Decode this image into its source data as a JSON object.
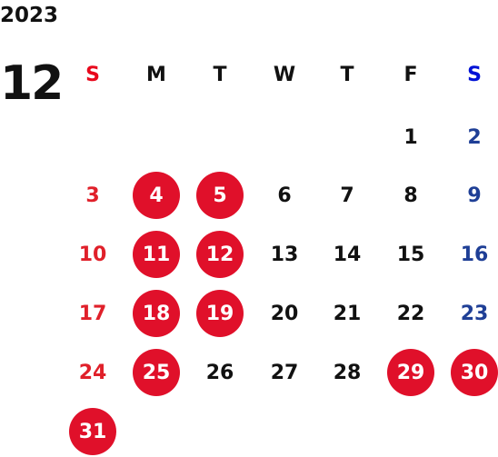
{
  "calendar": {
    "year": "2023",
    "month": "12",
    "weekdays": [
      "S",
      "M",
      "T",
      "W",
      "T",
      "F",
      "S"
    ],
    "first_weekday_index": 5,
    "days": [
      {
        "label": "1",
        "holiday": false
      },
      {
        "label": "2",
        "holiday": false
      },
      {
        "label": "3",
        "holiday": false
      },
      {
        "label": "4",
        "holiday": true
      },
      {
        "label": "5",
        "holiday": true
      },
      {
        "label": "6",
        "holiday": false
      },
      {
        "label": "7",
        "holiday": false
      },
      {
        "label": "8",
        "holiday": false
      },
      {
        "label": "9",
        "holiday": false
      },
      {
        "label": "10",
        "holiday": false
      },
      {
        "label": "11",
        "holiday": true
      },
      {
        "label": "12",
        "holiday": true
      },
      {
        "label": "13",
        "holiday": false
      },
      {
        "label": "14",
        "holiday": false
      },
      {
        "label": "15",
        "holiday": false
      },
      {
        "label": "16",
        "holiday": false
      },
      {
        "label": "17",
        "holiday": false
      },
      {
        "label": "18",
        "holiday": true
      },
      {
        "label": "19",
        "holiday": true
      },
      {
        "label": "20",
        "holiday": false
      },
      {
        "label": "21",
        "holiday": false
      },
      {
        "label": "22",
        "holiday": false
      },
      {
        "label": "23",
        "holiday": false
      },
      {
        "label": "24",
        "holiday": false
      },
      {
        "label": "25",
        "holiday": true
      },
      {
        "label": "26",
        "holiday": false
      },
      {
        "label": "27",
        "holiday": false
      },
      {
        "label": "28",
        "holiday": false
      },
      {
        "label": "29",
        "holiday": true
      },
      {
        "label": "30",
        "holiday": true
      },
      {
        "label": "31",
        "holiday": true
      }
    ]
  },
  "colors": {
    "text": "#111111",
    "sunday_header": "#e8081c",
    "saturday_header": "#0012d6",
    "sunday_text": "#e0202a",
    "saturday_text": "#1f3f96",
    "holiday_circle": "#e0102a",
    "holiday_text": "#ffffff"
  }
}
